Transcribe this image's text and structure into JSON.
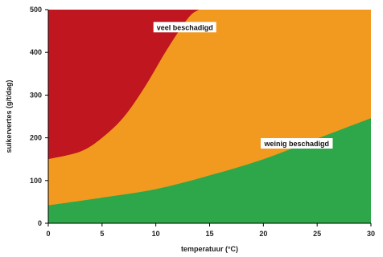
{
  "chart_data": {
    "type": "area",
    "xlabel": "temperatuur (°C)",
    "ylabel": "suikervertes (g/t/dag)",
    "xlim": [
      0,
      30
    ],
    "ylim": [
      0,
      500
    ],
    "xticks": [
      0,
      5,
      10,
      15,
      20,
      25,
      30
    ],
    "yticks": [
      0,
      100,
      200,
      300,
      400,
      500
    ],
    "xtick_labels": [
      "0",
      "5",
      "10",
      "15",
      "20",
      "25",
      "30"
    ],
    "ytick_labels": [
      "0",
      "100",
      "200",
      "300",
      "400",
      "500"
    ],
    "grid": false,
    "colors": {
      "green": "#2ea64a",
      "orange": "#f29a1f",
      "red": "#c0161f",
      "axis": "#000000",
      "background": "#ffffff"
    },
    "boundaries": {
      "lower": {
        "x": [
          0,
          5,
          10,
          15,
          20,
          25,
          30
        ],
        "y": [
          42,
          60,
          80,
          112,
          150,
          198,
          246
        ]
      },
      "upper": {
        "x": [
          0,
          3,
          5,
          7,
          9,
          11,
          13,
          14
        ],
        "y": [
          150,
          168,
          200,
          248,
          320,
          405,
          480,
          500
        ]
      }
    },
    "regions": [
      {
        "label": "",
        "color": "green",
        "between": [
          "axis",
          "lower"
        ]
      },
      {
        "label": "weinig beschadigd",
        "color": "orange",
        "between": [
          "lower",
          "upper"
        ]
      },
      {
        "label": "veel beschadigd",
        "color": "red",
        "between": [
          "upper",
          "top"
        ]
      }
    ],
    "annotations": [
      {
        "text": "veel beschadigd",
        "x": 12.7,
        "y": 458
      },
      {
        "text": "weinig beschadigd",
        "x": 23.1,
        "y": 186
      }
    ]
  }
}
